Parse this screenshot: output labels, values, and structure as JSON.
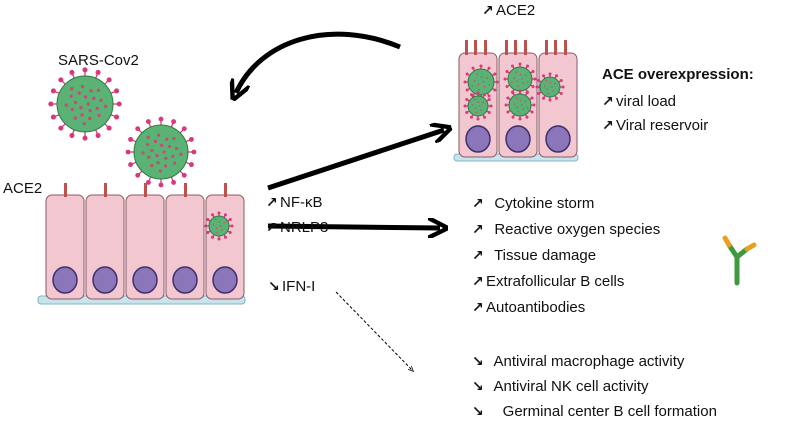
{
  "colors": {
    "cell_fill": "#f3c7cf",
    "cell_stroke": "#8a5a64",
    "nucleus_fill": "#8a76b8",
    "nucleus_stroke": "#3f2f6a",
    "basement": "#c7e4ec",
    "receptor": "#c0504d",
    "virus_fill": "#5bb275",
    "virus_spike": "#d9387a",
    "antibody_green": "#3f9a3f",
    "antibody_orange": "#e8a020",
    "arrow": "#000000"
  },
  "icons": {
    "increase": "up-right-arrow-icon",
    "decrease": "down-right-arrow-icon"
  },
  "labels": {
    "sars_cov2": "SARS-Cov2",
    "ace2_left": "ACE2",
    "ace2_top": "ACE2",
    "ace_overexpression": "ACE overexpression:",
    "viral_load": "viral load",
    "viral_reservoir": "Viral reservoir",
    "nfkb": "NF-κB",
    "nrlp3": "NRLP3",
    "ifn": "IFN-I"
  },
  "increased_effects": [
    "Cytokine storm",
    "Reactive oxygen species",
    "Tissue damage",
    "Extrafollicular B cells",
    "Autoantibodies"
  ],
  "decreased_effects": [
    "Antiviral macrophage activity",
    "Antiviral NK cell activity",
    "Germinal center B cell formation"
  ]
}
